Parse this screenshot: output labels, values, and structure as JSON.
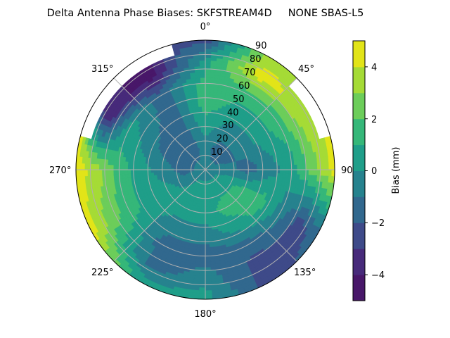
{
  "chart_data": {
    "type": "contour",
    "projection": "polar",
    "title": "Delta Antenna Phase Biases: SKFSTREAM4D     NONE SBAS-L5",
    "theta_zero": "top",
    "theta_direction": "clockwise",
    "theta_ticks": [
      "0°",
      "45°",
      "90°",
      "135°",
      "180°",
      "225°",
      "270°",
      "315°"
    ],
    "r_ticks": [
      "10",
      "20",
      "30",
      "40",
      "50",
      "60",
      "70",
      "80",
      "90"
    ],
    "r_range": [
      0,
      90
    ],
    "grid": true,
    "colorbar": {
      "label": "Bias (mm)",
      "range": [
        -5,
        5
      ],
      "levels": [
        -5,
        -4,
        -3,
        -2,
        -1,
        0,
        1,
        2,
        3,
        4,
        5
      ],
      "tick_labels": [
        "−4",
        "−2",
        "0",
        "2",
        "4"
      ],
      "ticks": [
        -4,
        -2,
        0,
        2,
        4
      ],
      "colors": [
        "#481769",
        "#472a7a",
        "#3e4a89",
        "#31688e",
        "#26828e",
        "#1f9e89",
        "#35b779",
        "#6ccd5a",
        "#a5db36",
        "#e2e418"
      ],
      "colormap": "viridis"
    },
    "grid_azimuth_deg": [
      0,
      30,
      60,
      90,
      120,
      150,
      180,
      210,
      240,
      270,
      300,
      330
    ],
    "grid_radius": [
      0,
      15,
      30,
      45,
      60,
      75,
      90
    ],
    "values_mm": [
      [
        -0.5,
        -0.5,
        0.5,
        1.5,
        1.5,
        0.5,
        -2.5
      ],
      [
        -0.5,
        -1.5,
        -0.5,
        0.5,
        1.5,
        4.5,
        3.5
      ],
      [
        -0.5,
        -1.5,
        -0.5,
        0.5,
        1.5,
        3.5,
        null
      ],
      [
        -0.5,
        -0.5,
        -1.5,
        -0.5,
        0.5,
        2.5,
        4.5
      ],
      [
        -0.5,
        0.5,
        1.5,
        1.5,
        -0.5,
        -2.5,
        -1.5
      ],
      [
        -0.5,
        0.5,
        1.5,
        0.5,
        -1.5,
        -2.5,
        -2.5
      ],
      [
        -0.5,
        0.5,
        0.5,
        -0.5,
        -1.5,
        -0.5,
        0.5
      ],
      [
        -0.5,
        0.5,
        0.5,
        -0.5,
        -1.5,
        -1.5,
        0.5
      ],
      [
        -0.5,
        -0.5,
        0.5,
        0.5,
        1.5,
        2.5,
        4.5
      ],
      [
        -0.5,
        -1.5,
        -0.5,
        0.5,
        1.5,
        3.5,
        4.5
      ],
      [
        -0.5,
        -1.5,
        -1.5,
        -0.5,
        0.5,
        -3.5,
        null
      ],
      [
        -0.5,
        -1.5,
        -1.5,
        -1.5,
        -1.5,
        -4.5,
        null
      ]
    ]
  }
}
